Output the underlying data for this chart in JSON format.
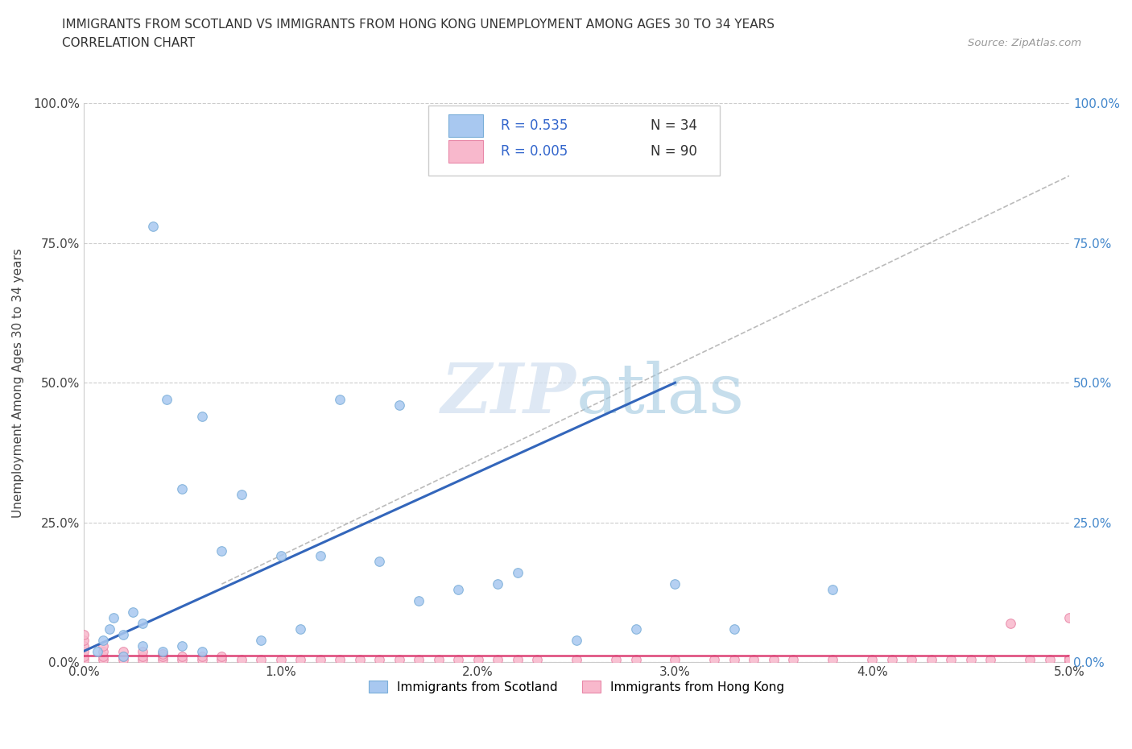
{
  "title_line1": "IMMIGRANTS FROM SCOTLAND VS IMMIGRANTS FROM HONG KONG UNEMPLOYMENT AMONG AGES 30 TO 34 YEARS",
  "title_line2": "CORRELATION CHART",
  "source_text": "Source: ZipAtlas.com",
  "ylabel": "Unemployment Among Ages 30 to 34 years",
  "xlim": [
    0.0,
    0.05
  ],
  "ylim": [
    0.0,
    1.0
  ],
  "xtick_labels": [
    "0.0%",
    "1.0%",
    "2.0%",
    "3.0%",
    "4.0%",
    "5.0%"
  ],
  "xtick_vals": [
    0.0,
    0.01,
    0.02,
    0.03,
    0.04,
    0.05
  ],
  "ytick_labels": [
    "0.0%",
    "25.0%",
    "50.0%",
    "75.0%",
    "100.0%"
  ],
  "ytick_vals": [
    0.0,
    0.25,
    0.5,
    0.75,
    1.0
  ],
  "scotland_color": "#a8c8f0",
  "scotland_edge_color": "#7aaed8",
  "hongkong_color": "#f8b8cc",
  "hongkong_edge_color": "#e888a8",
  "scotland_R": 0.535,
  "scotland_N": 34,
  "hongkong_R": 0.005,
  "hongkong_N": 90,
  "trend_scotland_color": "#3366bb",
  "trend_hongkong_color": "#dd4477",
  "watermark_color": "#c8d8e8",
  "legend_R_color": "#3366cc",
  "legend_N_color": "#333333",
  "scot_x": [
    0.0007,
    0.001,
    0.0013,
    0.0015,
    0.002,
    0.002,
    0.0025,
    0.003,
    0.003,
    0.0035,
    0.004,
    0.0042,
    0.005,
    0.005,
    0.006,
    0.006,
    0.007,
    0.008,
    0.009,
    0.01,
    0.011,
    0.012,
    0.013,
    0.015,
    0.016,
    0.017,
    0.019,
    0.021,
    0.022,
    0.025,
    0.028,
    0.03,
    0.033,
    0.038
  ],
  "scot_y": [
    0.02,
    0.04,
    0.06,
    0.08,
    0.01,
    0.05,
    0.09,
    0.03,
    0.07,
    0.78,
    0.02,
    0.47,
    0.03,
    0.31,
    0.02,
    0.44,
    0.2,
    0.3,
    0.04,
    0.19,
    0.06,
    0.19,
    0.47,
    0.18,
    0.46,
    0.11,
    0.13,
    0.14,
    0.16,
    0.04,
    0.06,
    0.14,
    0.06,
    0.13
  ],
  "hk_x": [
    0.0,
    0.0,
    0.0,
    0.0,
    0.0,
    0.0,
    0.001,
    0.001,
    0.001,
    0.001,
    0.002,
    0.002,
    0.002,
    0.003,
    0.003,
    0.003,
    0.004,
    0.004,
    0.004,
    0.005,
    0.005,
    0.006,
    0.006,
    0.007,
    0.007,
    0.008,
    0.009,
    0.01,
    0.011,
    0.012,
    0.013,
    0.014,
    0.015,
    0.016,
    0.017,
    0.018,
    0.019,
    0.02,
    0.021,
    0.022,
    0.023,
    0.025,
    0.027,
    0.028,
    0.03,
    0.032,
    0.033,
    0.034,
    0.035,
    0.036,
    0.038,
    0.04,
    0.041,
    0.042,
    0.043,
    0.044,
    0.045,
    0.046,
    0.047,
    0.048,
    0.049,
    0.05,
    0.05,
    0.05,
    0.05,
    0.05,
    0.05,
    0.05,
    0.05,
    0.05,
    0.05,
    0.05,
    0.05,
    0.05,
    0.05,
    0.05,
    0.05,
    0.05,
    0.05,
    0.05,
    0.05,
    0.05,
    0.05,
    0.05,
    0.05,
    0.05,
    0.05,
    0.05,
    0.05,
    0.05
  ],
  "hk_y": [
    0.005,
    0.01,
    0.02,
    0.03,
    0.04,
    0.05,
    0.005,
    0.01,
    0.02,
    0.03,
    0.005,
    0.01,
    0.02,
    0.005,
    0.01,
    0.02,
    0.005,
    0.01,
    0.015,
    0.005,
    0.01,
    0.005,
    0.01,
    0.005,
    0.01,
    0.005,
    0.005,
    0.005,
    0.005,
    0.005,
    0.005,
    0.005,
    0.005,
    0.005,
    0.005,
    0.005,
    0.005,
    0.005,
    0.005,
    0.005,
    0.005,
    0.005,
    0.005,
    0.005,
    0.005,
    0.005,
    0.005,
    0.005,
    0.005,
    0.005,
    0.005,
    0.005,
    0.005,
    0.005,
    0.005,
    0.005,
    0.005,
    0.005,
    0.07,
    0.005,
    0.005,
    0.005,
    0.005,
    0.005,
    0.005,
    0.005,
    0.005,
    0.005,
    0.005,
    0.005,
    0.005,
    0.005,
    0.005,
    0.005,
    0.005,
    0.005,
    0.005,
    0.005,
    0.005,
    0.08,
    0.005,
    0.005,
    0.005,
    0.005,
    0.005,
    0.005,
    0.005,
    0.005,
    0.005,
    0.005
  ]
}
